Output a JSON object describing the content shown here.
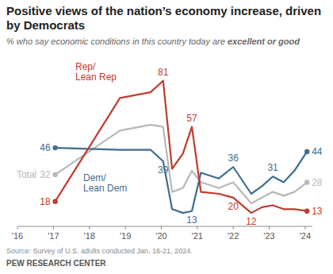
{
  "chart_data": {
    "type": "line",
    "title": "Positive views of the nation’s economy increase, driven by Democrats",
    "subtitle": "% who say economic conditions in this country today are excellent or good",
    "source": "Source: Survey of U.S. adults conducted Jan. 16-21, 2024.",
    "credit": "PEW RESEARCH CENTER",
    "x": [
      2017.05,
      2018.85,
      2019.7,
      2020.05,
      2020.3,
      2020.6,
      2020.85,
      2021.1,
      2021.6,
      2022.0,
      2022.5,
      2022.8,
      2023.1,
      2023.4,
      2023.7,
      2024.05
    ],
    "xlim": [
      2016,
      2024.2
    ],
    "xticks": [
      {
        "value": 2016,
        "label": "'16"
      },
      {
        "value": 2017,
        "label": "'17"
      },
      {
        "value": 2018,
        "label": "'18"
      },
      {
        "value": 2019,
        "label": "'19"
      },
      {
        "value": 2020,
        "label": "'20"
      },
      {
        "value": 2021,
        "label": "'21"
      },
      {
        "value": 2022,
        "label": "'22"
      },
      {
        "value": 2023,
        "label": "'23"
      },
      {
        "value": 2024,
        "label": "'24"
      }
    ],
    "ylim": [
      5,
      90
    ],
    "tick_labels": "x",
    "grid": false,
    "data_labels": true,
    "marker": "circle",
    "series": [
      {
        "name": "Total",
        "color": "#b8b8b8",
        "values": [
          32,
          55,
          58,
          57,
          23,
          25,
          34,
          28,
          25,
          28,
          17,
          20,
          23,
          21,
          23,
          28
        ],
        "value_labels": [
          "32",
          null,
          null,
          null,
          null,
          null,
          null,
          null,
          null,
          null,
          null,
          null,
          null,
          null,
          null,
          "28"
        ]
      },
      {
        "name": "Dem/Lean Dem",
        "color": "#416d8e",
        "values": [
          46,
          45,
          45,
          39,
          14,
          12,
          13,
          33,
          30,
          36,
          22,
          26,
          31,
          28,
          34,
          44
        ],
        "value_labels": [
          "46",
          null,
          null,
          "39",
          null,
          null,
          "13",
          null,
          null,
          "36",
          null,
          null,
          "31",
          null,
          null,
          "44"
        ]
      },
      {
        "name": "Rep/Lean Rep",
        "color": "#bf3b2e",
        "values": [
          18,
          72,
          75,
          81,
          35,
          43,
          57,
          23,
          22,
          20,
          12,
          15,
          16,
          14,
          14,
          13
        ],
        "value_labels": [
          "18",
          null,
          null,
          "81",
          null,
          null,
          "57",
          null,
          null,
          "20",
          "12",
          null,
          null,
          null,
          null,
          "13"
        ]
      }
    ]
  }
}
